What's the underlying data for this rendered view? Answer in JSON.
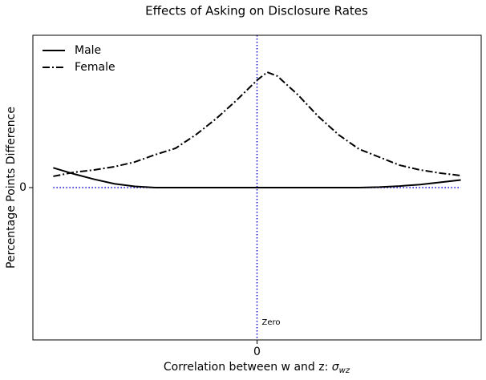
{
  "chart_data": {
    "type": "line",
    "title": "Effects of Asking on Disclosure Rates",
    "xlabel": "Correlation between w and z:",
    "xlabel_math": {
      "symbol": "σ",
      "subscript": "wz"
    },
    "ylabel": "Percentage Points Difference",
    "x": [
      -1,
      -0.9,
      -0.8,
      -0.7,
      -0.6,
      -0.5,
      -0.4,
      -0.3,
      -0.2,
      -0.1,
      0,
      0.05,
      0.1,
      0.2,
      0.3,
      0.4,
      0.5,
      0.6,
      0.7,
      0.8,
      0.9,
      1
    ],
    "series": [
      {
        "name": "Male",
        "color": "#000000",
        "style": "solid",
        "values": [
          0.13,
          0.09,
          0.055,
          0.025,
          0.008,
          0,
          0,
          0,
          0,
          0,
          0,
          0,
          0,
          0,
          0,
          0,
          0,
          0.003,
          0.01,
          0.02,
          0.035,
          0.05
        ]
      },
      {
        "name": "Female",
        "color": "#000000",
        "style": "dashdot",
        "values": [
          0.074,
          0.1,
          0.116,
          0.137,
          0.168,
          0.216,
          0.258,
          0.347,
          0.453,
          0.574,
          0.705,
          0.758,
          0.732,
          0.61,
          0.468,
          0.347,
          0.253,
          0.2,
          0.147,
          0.116,
          0.095,
          0.079
        ]
      }
    ],
    "xlim": [
      -1.1,
      1.1
    ],
    "ylim": [
      -1,
      1
    ],
    "xticks": [
      0
    ],
    "yticks": [
      0
    ],
    "vline": {
      "x": 0,
      "color": "#0000cc"
    },
    "hline": {
      "y": 0,
      "color": "#0000cc"
    },
    "annotation": "Zero",
    "legend": "upper left"
  }
}
